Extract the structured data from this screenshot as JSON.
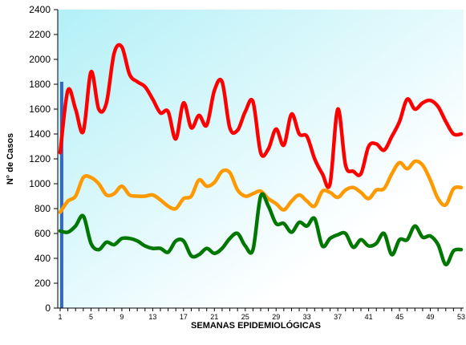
{
  "chart_data": {
    "type": "line",
    "xlabel": "SEMANAS EPIDEMIOLÓGICAS",
    "ylabel": "N° de Casos",
    "ylim": [
      0,
      2400
    ],
    "xlim": [
      1,
      53
    ],
    "yticks": [
      0,
      200,
      400,
      600,
      800,
      1000,
      1200,
      1400,
      1600,
      1800,
      2000,
      2200,
      2400
    ],
    "xticks": [
      1,
      5,
      9,
      13,
      17,
      21,
      25,
      29,
      33,
      37,
      41,
      45,
      49,
      53
    ],
    "grid": false,
    "legend": "none",
    "background_gradient": [
      "#b3f0f7",
      "#ffffff"
    ],
    "marker_bar": {
      "x": 1.2,
      "value": 1820,
      "color": "#3366cc"
    },
    "x": [
      1,
      2,
      3,
      4,
      5,
      6,
      7,
      8,
      9,
      10,
      11,
      12,
      13,
      14,
      15,
      16,
      17,
      18,
      19,
      20,
      21,
      22,
      23,
      24,
      25,
      26,
      27,
      28,
      29,
      30,
      31,
      32,
      33,
      34,
      35,
      36,
      37,
      38,
      39,
      40,
      41,
      42,
      43,
      44,
      45,
      46,
      47,
      48,
      49,
      50,
      51,
      52,
      53
    ],
    "series": [
      {
        "color": "#ff0000",
        "values": [
          1250,
          1750,
          1600,
          1420,
          1900,
          1600,
          1650,
          2050,
          2100,
          1880,
          1820,
          1780,
          1680,
          1570,
          1580,
          1360,
          1650,
          1450,
          1550,
          1470,
          1750,
          1820,
          1450,
          1430,
          1580,
          1660,
          1250,
          1280,
          1440,
          1310,
          1560,
          1400,
          1380,
          1200,
          1080,
          1000,
          1600,
          1150,
          1100,
          1080,
          1300,
          1320,
          1270,
          1380,
          1500,
          1680,
          1600,
          1650,
          1670,
          1620,
          1500,
          1400,
          1400
        ]
      },
      {
        "color": "#ff9900",
        "values": [
          770,
          860,
          900,
          1050,
          1050,
          1000,
          910,
          920,
          980,
          910,
          900,
          900,
          910,
          870,
          820,
          800,
          880,
          900,
          1030,
          980,
          1010,
          1100,
          1090,
          950,
          900,
          920,
          940,
          880,
          840,
          790,
          860,
          910,
          860,
          820,
          940,
          930,
          890,
          950,
          970,
          930,
          880,
          950,
          960,
          1080,
          1170,
          1120,
          1180,
          1150,
          1030,
          880,
          830,
          960,
          970
        ]
      },
      {
        "color": "#007700",
        "values": [
          620,
          610,
          660,
          740,
          520,
          470,
          530,
          510,
          560,
          560,
          540,
          500,
          480,
          480,
          450,
          540,
          540,
          420,
          430,
          480,
          440,
          480,
          560,
          600,
          500,
          470,
          900,
          820,
          680,
          680,
          610,
          690,
          660,
          720,
          500,
          560,
          590,
          600,
          490,
          550,
          500,
          520,
          600,
          430,
          550,
          550,
          660,
          570,
          580,
          510,
          350,
          460,
          470
        ]
      }
    ]
  }
}
